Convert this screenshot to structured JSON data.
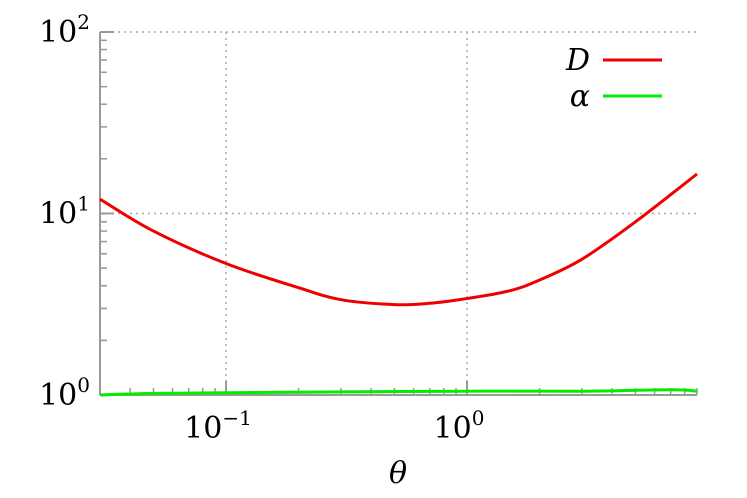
{
  "chart_data": {
    "type": "line",
    "xlabel": "θ",
    "ylabel": "",
    "x_scale": "log",
    "y_scale": "log",
    "xlim": [
      0.03,
      9.0
    ],
    "ylim": [
      1,
      100
    ],
    "grid": true,
    "legend_position": "top-right",
    "x_ticks": [
      {
        "value": 0.1,
        "base": "10",
        "exponent": "−1"
      },
      {
        "value": 1,
        "base": "10",
        "exponent": "0"
      }
    ],
    "y_ticks": [
      {
        "value": 1,
        "base": "10",
        "exponent": "0"
      },
      {
        "value": 10,
        "base": "10",
        "exponent": "1"
      },
      {
        "value": 100,
        "base": "10",
        "exponent": "2"
      }
    ],
    "series": [
      {
        "name": "D",
        "color": "#ee0000",
        "points": [
          [
            0.03,
            12.0
          ],
          [
            0.05,
            8.0
          ],
          [
            0.1,
            5.3
          ],
          [
            0.2,
            3.9
          ],
          [
            0.3,
            3.35
          ],
          [
            0.5,
            3.15
          ],
          [
            0.7,
            3.2
          ],
          [
            1.0,
            3.4
          ],
          [
            1.5,
            3.75
          ],
          [
            2.0,
            4.3
          ],
          [
            3.0,
            5.6
          ],
          [
            5.0,
            9.0
          ],
          [
            9.0,
            16.5
          ]
        ]
      },
      {
        "name": "α",
        "color": "#00ee00",
        "points": [
          [
            0.03,
            1.0
          ],
          [
            0.05,
            1.02
          ],
          [
            0.1,
            1.03
          ],
          [
            0.3,
            1.04
          ],
          [
            1.0,
            1.05
          ],
          [
            3.0,
            1.05
          ],
          [
            7.0,
            1.07
          ],
          [
            9.0,
            1.05
          ]
        ]
      }
    ]
  }
}
